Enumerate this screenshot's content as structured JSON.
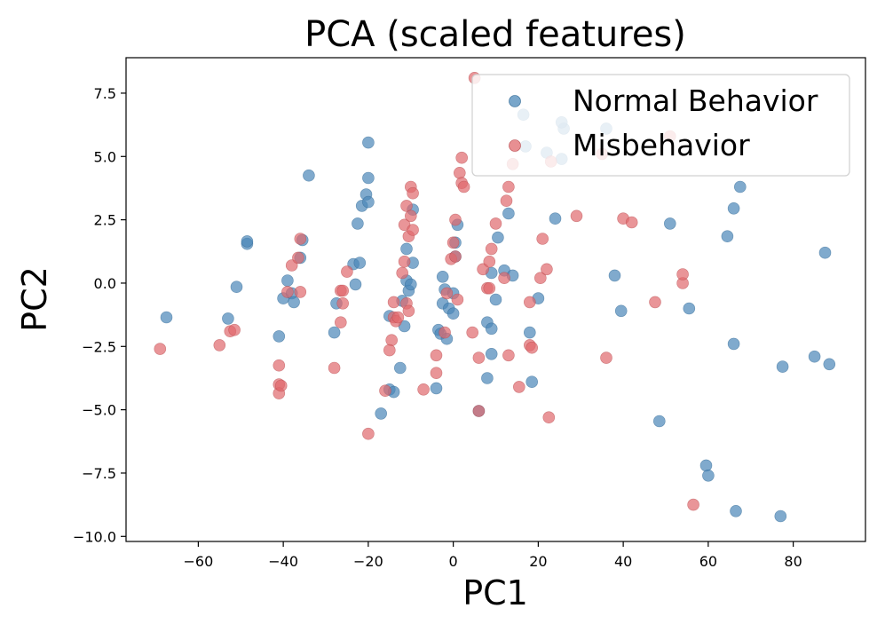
{
  "chart_data": {
    "type": "scatter",
    "title": "PCA (scaled features)",
    "xlabel": "PC1",
    "ylabel": "PC2",
    "xlim": [
      -77,
      97
    ],
    "ylim": [
      -10.2,
      8.9
    ],
    "xticks": [
      -60,
      -40,
      -20,
      0,
      20,
      40,
      60,
      80
    ],
    "yticks": [
      7.5,
      5.0,
      2.5,
      0.0,
      -2.5,
      -5.0,
      -7.5,
      -10.0
    ],
    "xtick_labels": [
      "−60",
      "−40",
      "−20",
      "0",
      "20",
      "40",
      "60",
      "80"
    ],
    "ytick_labels": [
      "7.5",
      "5.0",
      "2.5",
      "0.0",
      "−2.5",
      "−5.0",
      "−7.5",
      "−10.0"
    ],
    "grid": false,
    "legend_position": "top-right",
    "series": [
      {
        "name": "Normal Behavior",
        "color": "#4a86b8",
        "points": [
          [
            -67.5,
            -1.35
          ],
          [
            -53,
            -1.4
          ],
          [
            -51,
            -0.15
          ],
          [
            -48.5,
            1.55
          ],
          [
            -48.5,
            1.65
          ],
          [
            -41,
            -2.1
          ],
          [
            -40,
            -0.6
          ],
          [
            -39,
            0.1
          ],
          [
            -38,
            -0.4
          ],
          [
            -37.5,
            -0.75
          ],
          [
            -36,
            1.0
          ],
          [
            -35.5,
            1.7
          ],
          [
            -34,
            4.25
          ],
          [
            -28,
            -1.95
          ],
          [
            -27.5,
            -0.8
          ],
          [
            -23.5,
            0.75
          ],
          [
            -23,
            -0.05
          ],
          [
            -22.5,
            2.35
          ],
          [
            -22,
            0.8
          ],
          [
            -21.5,
            3.05
          ],
          [
            -20.5,
            3.5
          ],
          [
            -20,
            3.2
          ],
          [
            -20,
            4.15
          ],
          [
            -20,
            5.55
          ],
          [
            -17,
            -5.15
          ],
          [
            -15,
            -1.3
          ],
          [
            -15,
            -4.2
          ],
          [
            -14,
            -4.3
          ],
          [
            -12.5,
            -3.35
          ],
          [
            -12,
            -0.7
          ],
          [
            -11.5,
            -1.7
          ],
          [
            -11,
            0.1
          ],
          [
            -11,
            1.35
          ],
          [
            -10.5,
            -0.3
          ],
          [
            -10,
            -0.05
          ],
          [
            -9.5,
            0.8
          ],
          [
            -9.5,
            2.9
          ],
          [
            -4,
            -4.15
          ],
          [
            -3.5,
            -1.85
          ],
          [
            -3,
            -2.0
          ],
          [
            -2.5,
            -0.8
          ],
          [
            -2.5,
            0.25
          ],
          [
            -2,
            -0.25
          ],
          [
            -1.5,
            -2.2
          ],
          [
            -1,
            -1.0
          ],
          [
            0,
            -0.4
          ],
          [
            0,
            -1.2
          ],
          [
            0.5,
            1.6
          ],
          [
            0.5,
            1.05
          ],
          [
            1,
            2.3
          ],
          [
            6,
            -5.05
          ],
          [
            8,
            -3.75
          ],
          [
            8,
            -1.55
          ],
          [
            9,
            -2.8
          ],
          [
            9,
            -1.8
          ],
          [
            9,
            0.4
          ],
          [
            10,
            -0.65
          ],
          [
            10.5,
            1.8
          ],
          [
            12,
            0.5
          ],
          [
            13,
            2.75
          ],
          [
            14,
            0.3
          ],
          [
            14.5,
            7.2
          ],
          [
            16.5,
            6.65
          ],
          [
            17,
            5.4
          ],
          [
            18,
            -1.95
          ],
          [
            18.5,
            -3.9
          ],
          [
            20,
            -0.6
          ],
          [
            22,
            5.15
          ],
          [
            24,
            2.55
          ],
          [
            26,
            6.1
          ],
          [
            25.5,
            4.9
          ],
          [
            25.5,
            6.35
          ],
          [
            36,
            6.1
          ],
          [
            38,
            0.3
          ],
          [
            39.5,
            -1.1
          ],
          [
            48.5,
            -5.45
          ],
          [
            51,
            2.35
          ],
          [
            55.5,
            -1.0
          ],
          [
            59.5,
            -7.2
          ],
          [
            60,
            -7.6
          ],
          [
            64.5,
            1.85
          ],
          [
            66,
            2.95
          ],
          [
            66,
            -2.4
          ],
          [
            66.5,
            -9.0
          ],
          [
            67.5,
            3.8
          ],
          [
            77,
            -9.2
          ],
          [
            77.5,
            -3.3
          ],
          [
            85,
            -2.9
          ],
          [
            87.5,
            1.2
          ],
          [
            88.5,
            -3.2
          ]
        ]
      },
      {
        "name": "Misbehavior",
        "color": "#e0686c",
        "points": [
          [
            -69,
            -2.6
          ],
          [
            -55,
            -2.45
          ],
          [
            -52.5,
            -1.9
          ],
          [
            -51.5,
            -1.85
          ],
          [
            -41,
            -3.25
          ],
          [
            -41,
            -4.0
          ],
          [
            -41,
            -4.35
          ],
          [
            -40.5,
            -4.05
          ],
          [
            -39,
            -0.35
          ],
          [
            -38,
            0.7
          ],
          [
            -36,
            1.75
          ],
          [
            -36.5,
            1.0
          ],
          [
            -36,
            -0.35
          ],
          [
            -28,
            -3.35
          ],
          [
            -26.5,
            -1.55
          ],
          [
            -26.5,
            -0.3
          ],
          [
            -26,
            -0.3
          ],
          [
            -25,
            0.45
          ],
          [
            -26,
            -0.8
          ],
          [
            -20,
            -5.95
          ],
          [
            -16,
            -4.25
          ],
          [
            -14.5,
            -2.25
          ],
          [
            -14,
            -0.75
          ],
          [
            -14,
            -1.35
          ],
          [
            -15,
            -2.65
          ],
          [
            -13.5,
            -1.5
          ],
          [
            -13,
            -1.35
          ],
          [
            -12,
            0.4
          ],
          [
            -11.5,
            0.85
          ],
          [
            -11.5,
            2.3
          ],
          [
            -11,
            -0.8
          ],
          [
            -11,
            3.05
          ],
          [
            -10.5,
            1.85
          ],
          [
            -10,
            2.65
          ],
          [
            -10,
            3.8
          ],
          [
            -9.5,
            3.55
          ],
          [
            -9.5,
            2.1
          ],
          [
            -10.5,
            -1.1
          ],
          [
            -7,
            -4.2
          ],
          [
            -4,
            -2.85
          ],
          [
            -4,
            -3.55
          ],
          [
            -2,
            -1.95
          ],
          [
            -1.5,
            -0.4
          ],
          [
            -0.5,
            0.95
          ],
          [
            0,
            1.6
          ],
          [
            0.5,
            1.05
          ],
          [
            0.5,
            2.5
          ],
          [
            1,
            -0.65
          ],
          [
            1.5,
            4.35
          ],
          [
            2,
            3.95
          ],
          [
            2,
            4.95
          ],
          [
            2.5,
            3.8
          ],
          [
            4.5,
            -1.95
          ],
          [
            5,
            8.1
          ],
          [
            6,
            -5.05
          ],
          [
            6,
            -2.95
          ],
          [
            7,
            0.55
          ],
          [
            8,
            -0.2
          ],
          [
            8.5,
            -0.2
          ],
          [
            8.5,
            0.85
          ],
          [
            9,
            1.35
          ],
          [
            10,
            2.35
          ],
          [
            12,
            0.2
          ],
          [
            12.5,
            3.25
          ],
          [
            13,
            3.8
          ],
          [
            13,
            -2.85
          ],
          [
            14,
            4.7
          ],
          [
            14.5,
            5.4
          ],
          [
            15.5,
            -4.1
          ],
          [
            18,
            -2.45
          ],
          [
            18,
            -0.75
          ],
          [
            18.5,
            -2.55
          ],
          [
            20.5,
            0.2
          ],
          [
            21,
            1.75
          ],
          [
            22,
            0.55
          ],
          [
            22.5,
            -5.3
          ],
          [
            23,
            4.8
          ],
          [
            29,
            2.65
          ],
          [
            35,
            5.1
          ],
          [
            36,
            -2.95
          ],
          [
            40,
            2.55
          ],
          [
            42,
            2.4
          ],
          [
            47.5,
            -0.75
          ],
          [
            51,
            5.8
          ],
          [
            54,
            0.0
          ],
          [
            54,
            0.35
          ],
          [
            56.5,
            -8.75
          ]
        ]
      }
    ]
  }
}
